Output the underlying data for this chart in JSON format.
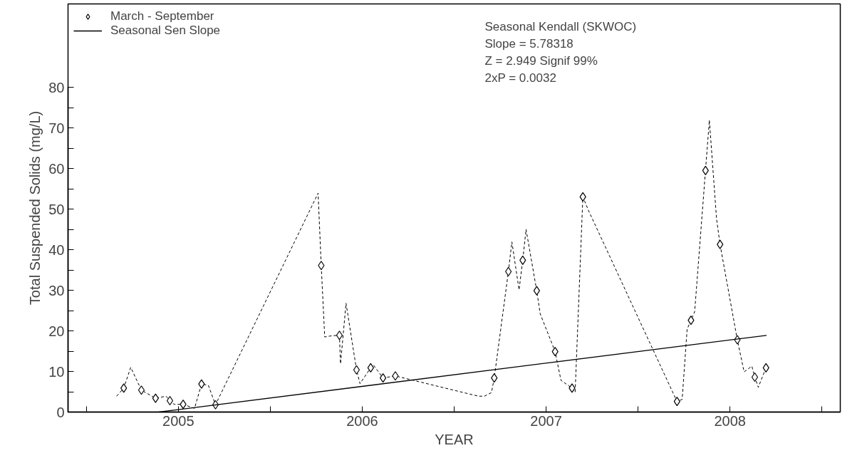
{
  "chart_data": {
    "type": "line",
    "xlabel": "YEAR",
    "ylabel": "Total Suspended Solids (mg/L)",
    "xlim": [
      2004.4,
      2008.6
    ],
    "ylim": [
      0,
      80
    ],
    "xticks": [
      {
        "value": 2004.5,
        "label": null
      },
      2005,
      {
        "value": 2005.5,
        "label": null
      },
      2006,
      {
        "value": 2006.5,
        "label": null
      },
      2007,
      {
        "value": 2007.5,
        "label": null
      },
      2008,
      {
        "value": 2008.5,
        "label": null
      }
    ],
    "yticks": [
      0,
      {
        "value": 5,
        "label": null
      },
      10,
      {
        "value": 15,
        "label": null
      },
      20,
      {
        "value": 25,
        "label": null
      },
      30,
      {
        "value": 35,
        "label": null
      },
      40,
      {
        "value": 45,
        "label": null
      },
      50,
      {
        "value": 55,
        "label": null
      },
      60,
      {
        "value": 65,
        "label": null
      },
      70,
      {
        "value": 75,
        "label": null
      },
      80
    ],
    "grid": false,
    "legend": "top left",
    "annotations": [
      "Seasonal Kendall (SKWOC)",
      "Slope = 5.78318",
      "Z = 2.949  Signif 99%",
      "2xP = 0.0032"
    ],
    "series": [
      {
        "color": "#000000",
        "line_style": "dashed",
        "marker": "none",
        "x": [
          2004.664,
          2004.703,
          2004.741,
          2004.799,
          2004.876,
          2004.933,
          2004.954,
          2004.977,
          2005.026,
          2005.088,
          2005.126,
          2005.163,
          2005.202,
          2005.76,
          2005.777,
          2005.796,
          2005.837,
          2005.876,
          2005.882,
          2005.912,
          2005.969,
          2005.988,
          2006.046,
          2006.062,
          2006.113,
          2006.18,
          2006.632,
          2006.664,
          2006.703,
          2006.718,
          2006.795,
          2006.814,
          2006.853,
          2006.873,
          2006.891,
          2006.949,
          2006.968,
          2007.049,
          2007.081,
          2007.141,
          2007.158,
          2007.2,
          2007.231,
          2007.712,
          2007.74,
          2007.767,
          2007.788,
          2007.808,
          2007.867,
          2007.888,
          2007.927,
          2007.946,
          2008.04,
          2008.077,
          2008.119,
          2008.135,
          2008.154,
          2008.196
        ],
        "values": [
          3.9,
          5.9,
          11,
          5.4,
          3.4,
          3.9,
          2.8,
          1.9,
          1.9,
          0.9,
          6.9,
          6.6,
          1.8,
          53.9,
          36.1,
          18.5,
          18.8,
          18.9,
          11.9,
          26.8,
          10.4,
          7.0,
          10.9,
          11.5,
          8.4,
          8.9,
          3.9,
          3.9,
          4.8,
          8.4,
          34.6,
          41.9,
          30.1,
          37.4,
          45.0,
          29.9,
          24.2,
          14.9,
          7.8,
          5.9,
          4.9,
          53.0,
          49.6,
          2.6,
          3.1,
          20.4,
          22.6,
          24.7,
          59.5,
          71.9,
          47.6,
          41.3,
          17.8,
          9.9,
          11.3,
          8.6,
          6.1,
          10.9
        ]
      },
      {
        "type": "scatter",
        "name": "March - September",
        "color": "#000000",
        "marker": "diamond",
        "x": [
          2004.703,
          2004.799,
          2004.876,
          2004.954,
          2005.026,
          2005.126,
          2005.202,
          2005.777,
          2005.876,
          2005.969,
          2006.046,
          2006.113,
          2006.18,
          2006.718,
          2006.795,
          2006.873,
          2006.949,
          2007.049,
          2007.141,
          2007.2,
          2007.712,
          2007.788,
          2007.867,
          2007.946,
          2008.04,
          2008.135,
          2008.196
        ],
        "values": [
          5.9,
          5.4,
          3.4,
          2.8,
          1.9,
          6.9,
          1.8,
          36.1,
          18.9,
          10.4,
          10.9,
          8.4,
          8.9,
          8.4,
          34.6,
          37.4,
          29.9,
          14.9,
          5.9,
          53.0,
          2.6,
          22.6,
          59.5,
          41.3,
          17.8,
          8.6,
          10.9
        ]
      },
      {
        "name": "Seasonal Sen Slope",
        "color": "#000000",
        "line_style": "solid",
        "marker": "none",
        "x": [
          2004.895,
          2008.199
        ],
        "values": [
          0,
          18.9
        ]
      }
    ]
  }
}
